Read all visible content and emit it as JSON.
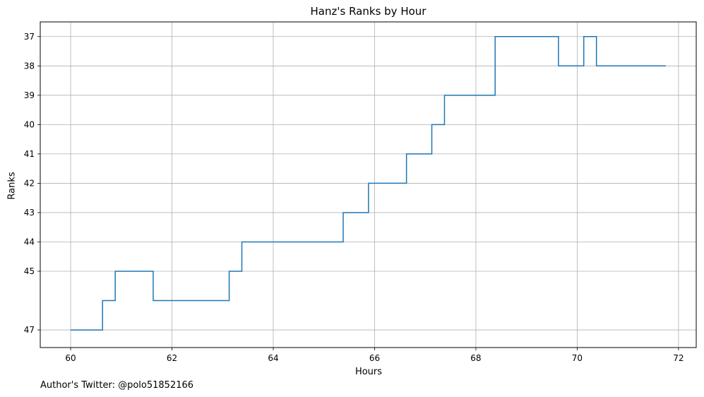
{
  "footer_text": "Author's Twitter: @polo51852166",
  "chart_data": {
    "type": "line",
    "drawstyle": "steps-post",
    "title": "Hanz's Ranks by Hour",
    "xlabel": "Hours",
    "ylabel": "Ranks",
    "xlim": [
      59.4,
      72.35
    ],
    "ylim": [
      47.6,
      36.5
    ],
    "y_inverted": true,
    "grid": true,
    "xticks": [
      60,
      62,
      64,
      66,
      68,
      70,
      72
    ],
    "xtick_labels": [
      "60",
      "62",
      "64",
      "66",
      "68",
      "70",
      "72"
    ],
    "yticks": [
      37,
      38,
      39,
      40,
      41,
      42,
      43,
      44,
      45,
      47
    ],
    "ytick_labels": [
      "37",
      "38",
      "39",
      "40",
      "41",
      "42",
      "43",
      "44",
      "45",
      "47"
    ],
    "line_color": "#1f77b4",
    "series": [
      {
        "x": [
          60.0,
          60.63,
          60.88,
          61.63,
          63.13,
          63.38,
          65.38,
          65.88,
          66.63,
          67.13,
          67.38,
          68.38,
          69.63,
          70.13,
          70.38,
          71.75
        ],
        "y": [
          47,
          46,
          45,
          46,
          45,
          44,
          43,
          42,
          41,
          40,
          39,
          37,
          38,
          37,
          38,
          38
        ]
      }
    ]
  }
}
